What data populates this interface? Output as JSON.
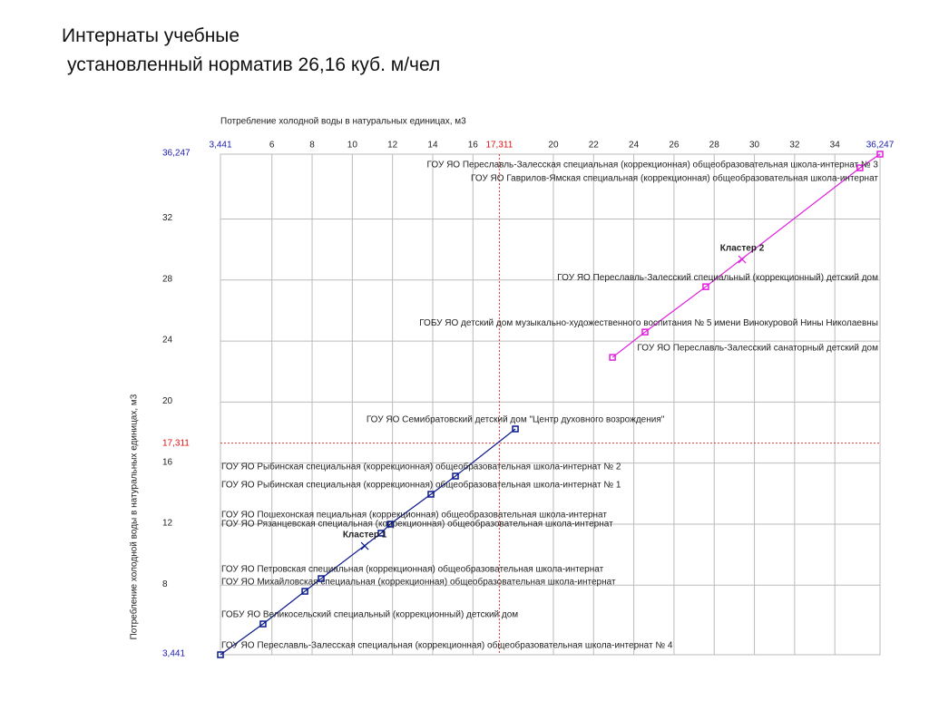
{
  "header": {
    "line1": "Интернаты учебные",
    "line2": "установленный норматив 26,16 куб. м/чел"
  },
  "chart_data": {
    "type": "scatter",
    "title": "Потребление холодной воды в натуральных единицах, м3",
    "y_label": "Потребление холодной воды в натуральных единицах, м3",
    "xlim": [
      3.441,
      36.247
    ],
    "ylim": [
      3.441,
      36.247
    ],
    "xticks": [
      {
        "value": 3.441,
        "label": "3,441"
      },
      6,
      8,
      10,
      12,
      14,
      16,
      20,
      22,
      24,
      26,
      28,
      30,
      32,
      34,
      {
        "value": 36.247,
        "label": "36,247"
      }
    ],
    "yticks": [
      {
        "value": 3.441,
        "label": "3,441"
      },
      8,
      12,
      16,
      20,
      24,
      28,
      32,
      {
        "value": 36.247,
        "label": "36,247"
      }
    ],
    "xref": {
      "value": 17.311,
      "label": "17,311"
    },
    "yref": {
      "value": 17.311,
      "label": "17,311"
    },
    "grid": true,
    "series": [
      {
        "color": "#0a1a8c",
        "x": [
          3.441,
          5.56,
          7.64,
          8.45,
          11.43,
          11.88,
          13.91,
          15.13,
          18.11
        ],
        "values": [
          3.441,
          5.46,
          7.6,
          8.43,
          11.41,
          12.0,
          13.96,
          15.15,
          18.24
        ],
        "labels": [
          "ГОУ ЯО Переславль-Залесская специальная (коррекционная) общеобразовательная школа-интернат № 4",
          "ГОБУ ЯО Великосельский специальный (коррекционный) детский дом",
          "ГОУ ЯО Михайловская специальная (коррекционная) общеобразовательная школа-интернат",
          "ГОУ ЯО Петровская специальная (коррекционная) общеобразовательная школа-интернат",
          "ГОУ ЯО Рязанцевская специальная (коррекционная) общеобразовательная школа-интернат",
          "ГОУ ЯО Пошехонская пециальная (коррекционная) общеобразовательная школа-интернат",
          "ГОУ ЯО Рыбинская специальная (коррекционная) общеобразовательная школа-интернат № 1",
          "ГОУ ЯО Рыбинская специальная (коррекционная) общеобразовательная школа-интернат № 2",
          "ГОУ ЯО Семибратовский детский дом \"Центр духовного возрождения\""
        ]
      },
      {
        "color": "#e020e0",
        "x": [
          22.94,
          24.56,
          27.58,
          35.25,
          36.247
        ],
        "values": [
          22.93,
          24.59,
          27.56,
          35.35,
          36.247
        ],
        "labels": [
          "ГОУ ЯО Переславль-Залесский санаторный детский дом",
          "ГОБУ ЯО детский дом музыкально-художественного воспитания № 5 имени Винокуровой Нины Николаевны",
          "ГОУ ЯО Переславль-Залесский специальный (коррекционный) детский дом",
          "ГОУ ЯО Гаврилов-Ямская специальная (коррекционная) общеобразовательная школа-интернат",
          "ГОУ ЯО Переславль-Залесская специальная (коррекционная) общеобразовательная школа-интернат № 3"
        ]
      }
    ],
    "clusters": [
      {
        "name": "Кластер 1",
        "x": 10.62,
        "y": 10.57
      },
      {
        "name": "Кластер 2",
        "x": 29.39,
        "y": 29.35
      }
    ]
  }
}
